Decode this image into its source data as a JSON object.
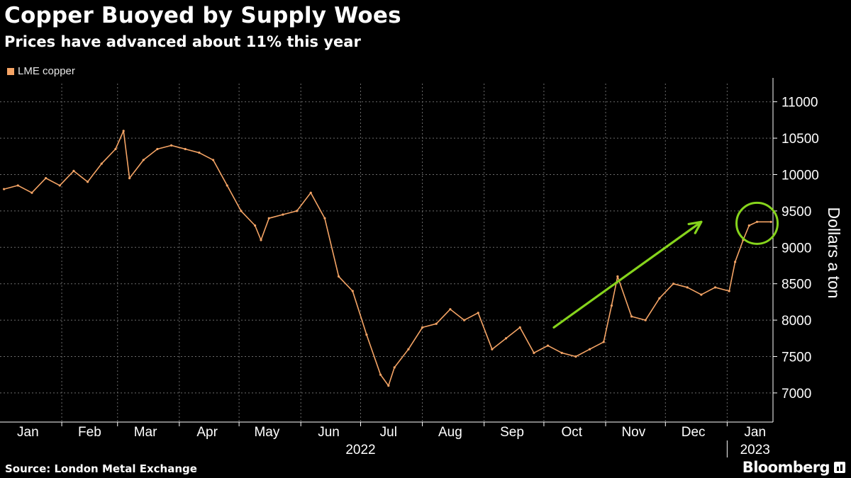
{
  "header": {
    "title": "Copper Buoyed by Supply Woes",
    "subtitle": "Prices have advanced about 11% this year"
  },
  "footer": {
    "source": "Source: London Metal Exchange",
    "brand": "Bloomberg"
  },
  "colors": {
    "background": "#000000",
    "series": "#f5a465",
    "grid": "#6b6b6b",
    "annotation": "#86d41c",
    "text": "#ffffff"
  },
  "chart_data": {
    "type": "line",
    "subtype": "ohlc-bars",
    "legend": [
      {
        "name": "LME copper",
        "color": "#f5a465"
      }
    ],
    "legend_position": "top-left",
    "ylabel": "Dollars a ton",
    "ylim": [
      6600,
      11250
    ],
    "yticks": [
      7000,
      7500,
      8000,
      8500,
      9000,
      9500,
      10000,
      10500,
      11000
    ],
    "y_axis_side": "right",
    "grid": true,
    "x_range": [
      "2022-01-01",
      "2023-01-24"
    ],
    "xticks": [
      {
        "label": "Jan",
        "date": "2022-01-15"
      },
      {
        "label": "Feb",
        "date": "2022-02-15"
      },
      {
        "label": "Mar",
        "date": "2022-03-15"
      },
      {
        "label": "Apr",
        "date": "2022-04-15"
      },
      {
        "label": "May",
        "date": "2022-05-15"
      },
      {
        "label": "Jun",
        "date": "2022-06-15"
      },
      {
        "label": "Jul",
        "date": "2022-07-15"
      },
      {
        "label": "Aug",
        "date": "2022-08-15"
      },
      {
        "label": "Sep",
        "date": "2022-09-15"
      },
      {
        "label": "Oct",
        "date": "2022-10-15"
      },
      {
        "label": "Nov",
        "date": "2022-11-15"
      },
      {
        "label": "Dec",
        "date": "2022-12-15"
      },
      {
        "label": "Jan",
        "date": "2023-01-15"
      }
    ],
    "year_labels": [
      {
        "label": "2022",
        "date": "2022-07-01"
      },
      {
        "label": "2023",
        "date": "2023-01-15"
      }
    ],
    "year_divider": "2023-01-01",
    "series": [
      {
        "name": "LME copper",
        "x": [
          "2022-01-03",
          "2022-01-10",
          "2022-01-17",
          "2022-01-24",
          "2022-01-31",
          "2022-02-07",
          "2022-02-14",
          "2022-02-21",
          "2022-02-28",
          "2022-03-04",
          "2022-03-07",
          "2022-03-14",
          "2022-03-21",
          "2022-03-28",
          "2022-04-04",
          "2022-04-11",
          "2022-04-18",
          "2022-04-25",
          "2022-05-02",
          "2022-05-09",
          "2022-05-12",
          "2022-05-16",
          "2022-05-23",
          "2022-05-30",
          "2022-06-06",
          "2022-06-13",
          "2022-06-20",
          "2022-06-27",
          "2022-07-04",
          "2022-07-11",
          "2022-07-15",
          "2022-07-18",
          "2022-07-25",
          "2022-08-01",
          "2022-08-08",
          "2022-08-15",
          "2022-08-22",
          "2022-08-29",
          "2022-09-05",
          "2022-09-12",
          "2022-09-19",
          "2022-09-26",
          "2022-10-03",
          "2022-10-10",
          "2022-10-17",
          "2022-10-24",
          "2022-10-31",
          "2022-11-04",
          "2022-11-07",
          "2022-11-14",
          "2022-11-21",
          "2022-11-28",
          "2022-12-05",
          "2022-12-12",
          "2022-12-19",
          "2022-12-26",
          "2023-01-02",
          "2023-01-05",
          "2023-01-09",
          "2023-01-12",
          "2023-01-16",
          "2023-01-23"
        ],
        "values": [
          9800,
          9850,
          9750,
          9950,
          9850,
          10050,
          9900,
          10150,
          10350,
          10600,
          9950,
          10200,
          10350,
          10400,
          10350,
          10300,
          10200,
          9850,
          9500,
          9300,
          9100,
          9400,
          9450,
          9500,
          9750,
          9400,
          8600,
          8400,
          7800,
          7250,
          7100,
          7350,
          7600,
          7900,
          7950,
          8150,
          8000,
          8100,
          7600,
          7750,
          7900,
          7550,
          7650,
          7550,
          7500,
          7600,
          7700,
          8200,
          8600,
          8050,
          8000,
          8300,
          8500,
          8450,
          8350,
          8450,
          8400,
          8800,
          9100,
          9300,
          9350,
          9350
        ]
      }
    ],
    "annotations": [
      {
        "type": "arrow",
        "from": {
          "date": "2022-10-06",
          "value": 7900
        },
        "to": {
          "date": "2022-12-19",
          "value": 9350
        }
      },
      {
        "type": "circle",
        "center": {
          "date": "2023-01-16",
          "value": 9330
        }
      }
    ]
  }
}
